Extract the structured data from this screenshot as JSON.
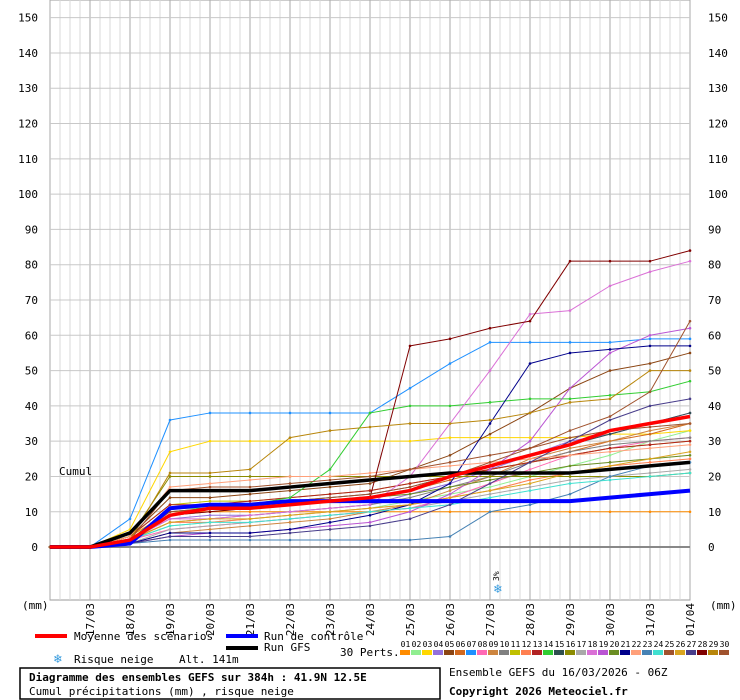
{
  "chart_data": {
    "type": "line",
    "ylabel_left": "(mm)",
    "ylabel_right": "(mm)",
    "series_label": "Cumul",
    "ylim": [
      -15,
      155
    ],
    "yticks": [
      0,
      10,
      20,
      30,
      40,
      50,
      60,
      70,
      80,
      90,
      100,
      110,
      120,
      130,
      140,
      150
    ],
    "xticks": [
      "17/03",
      "18/03",
      "19/03",
      "20/03",
      "21/03",
      "22/03",
      "23/03",
      "24/03",
      "25/03",
      "26/03",
      "27/03",
      "28/03",
      "29/03",
      "30/03",
      "31/03",
      "01/04"
    ],
    "x_hours": [
      0,
      24,
      48,
      72,
      96,
      120,
      144,
      168,
      192,
      216,
      240,
      264,
      288,
      312,
      336,
      360,
      384
    ],
    "snow_risk_marker": {
      "hour": 270,
      "label": "3%"
    },
    "mean": {
      "name": "Moyenne des scénarios",
      "color": "#ff0000",
      "values": [
        0,
        0,
        2,
        9,
        11,
        11,
        12,
        13,
        14,
        16,
        20,
        23,
        26,
        29,
        33,
        35,
        37
      ]
    },
    "control": {
      "name": "Run de contrôle",
      "color": "#0000ff",
      "values": [
        0,
        0,
        1,
        11,
        12,
        12,
        13,
        13,
        13,
        13,
        13,
        13,
        13,
        13,
        14,
        15,
        16
      ]
    },
    "gfs": {
      "name": "Run GFS",
      "color": "#000000",
      "values": [
        0,
        0,
        4,
        16,
        16,
        16,
        17,
        18,
        19,
        20,
        21,
        21,
        21,
        21,
        22,
        23,
        24
      ]
    },
    "perturbations": [
      {
        "name": "01",
        "color": "#ff8c00",
        "values": [
          0,
          0,
          3,
          10,
          10,
          10,
          10,
          10,
          10,
          10,
          10,
          10,
          10,
          10,
          10,
          10,
          10
        ]
      },
      {
        "name": "02",
        "color": "#90ee90",
        "values": [
          0,
          0,
          2,
          6,
          7,
          8,
          9,
          10,
          11,
          13,
          15,
          17,
          20,
          23,
          26,
          30,
          33
        ]
      },
      {
        "name": "03",
        "color": "#ffd700",
        "values": [
          0,
          0,
          5,
          27,
          30,
          30,
          30,
          30,
          30,
          30,
          31,
          31,
          31,
          31,
          32,
          32,
          33
        ]
      },
      {
        "name": "04",
        "color": "#9370db",
        "values": [
          0,
          0,
          2,
          8,
          9,
          9,
          10,
          11,
          12,
          15,
          18,
          22,
          26,
          30,
          32,
          35,
          38
        ]
      },
      {
        "name": "05",
        "color": "#8b4513",
        "values": [
          0,
          0,
          3,
          14,
          14,
          15,
          16,
          17,
          18,
          22,
          26,
          32,
          38,
          45,
          50,
          52,
          55
        ]
      },
      {
        "name": "06",
        "color": "#d2691e",
        "values": [
          0,
          0,
          2,
          9,
          10,
          11,
          12,
          13,
          14,
          16,
          19,
          22,
          24,
          27,
          30,
          32,
          35
        ]
      },
      {
        "name": "07",
        "color": "#1e90ff",
        "values": [
          0,
          0,
          8,
          36,
          38,
          38,
          38,
          38,
          38,
          45,
          52,
          58,
          58,
          58,
          58,
          59,
          59
        ]
      },
      {
        "name": "08",
        "color": "#ff69b4",
        "values": [
          0,
          0,
          2,
          5,
          6,
          7,
          8,
          9,
          10,
          11,
          14,
          18,
          22,
          26,
          28,
          30,
          31
        ]
      },
      {
        "name": "09",
        "color": "#cd853f",
        "values": [
          0,
          0,
          1,
          4,
          5,
          6,
          7,
          8,
          10,
          12,
          16,
          20,
          25,
          28,
          30,
          33,
          35
        ]
      },
      {
        "name": "10",
        "color": "#808080",
        "values": [
          0,
          0,
          2,
          7,
          8,
          9,
          10,
          11,
          12,
          14,
          17,
          20,
          24,
          27,
          29,
          30,
          31
        ]
      },
      {
        "name": "11",
        "color": "#c0c000",
        "values": [
          0,
          0,
          3,
          12,
          13,
          13,
          14,
          15,
          16,
          18,
          20,
          22,
          24,
          26,
          28,
          29,
          30
        ]
      },
      {
        "name": "12",
        "color": "#ff7f50",
        "values": [
          0,
          0,
          2,
          7,
          7,
          8,
          9,
          10,
          11,
          12,
          14,
          16,
          19,
          21,
          23,
          24,
          25
        ]
      },
      {
        "name": "13",
        "color": "#b22222",
        "values": [
          0,
          0,
          3,
          12,
          12,
          13,
          14,
          15,
          16,
          18,
          20,
          22,
          24,
          26,
          28,
          29,
          30
        ]
      },
      {
        "name": "14",
        "color": "#32cd32",
        "values": [
          0,
          0,
          2,
          11,
          11,
          12,
          14,
          22,
          38,
          40,
          40,
          41,
          42,
          42,
          43,
          44,
          47
        ]
      },
      {
        "name": "15",
        "color": "#2f4f4f",
        "values": [
          0,
          0,
          2,
          10,
          11,
          12,
          13,
          14,
          15,
          17,
          20,
          23,
          26,
          29,
          32,
          35,
          38
        ]
      },
      {
        "name": "16",
        "color": "#8b8b00",
        "values": [
          0,
          0,
          3,
          20,
          20,
          20,
          20,
          20,
          20,
          20,
          20,
          20,
          20,
          20,
          20,
          20,
          21
        ]
      },
      {
        "name": "17",
        "color": "#a9a9a9",
        "values": [
          0,
          0,
          1,
          5,
          6,
          7,
          8,
          9,
          10,
          11,
          13,
          15,
          17,
          19,
          20,
          21,
          22
        ]
      },
      {
        "name": "18",
        "color": "#da70d6",
        "values": [
          0,
          0,
          2,
          8,
          8,
          9,
          10,
          11,
          12,
          20,
          35,
          50,
          66,
          67,
          74,
          78,
          81
        ]
      },
      {
        "name": "19",
        "color": "#ba55d3",
        "values": [
          0,
          0,
          1,
          3,
          4,
          4,
          5,
          6,
          7,
          10,
          15,
          22,
          30,
          45,
          55,
          60,
          62
        ]
      },
      {
        "name": "20",
        "color": "#6b8e23",
        "values": [
          0,
          0,
          2,
          11,
          12,
          12,
          13,
          13,
          14,
          15,
          17,
          19,
          21,
          23,
          24,
          25,
          26
        ]
      },
      {
        "name": "21",
        "color": "#00008b",
        "values": [
          0,
          0,
          1,
          4,
          4,
          4,
          5,
          7,
          9,
          12,
          18,
          35,
          52,
          55,
          56,
          57,
          57
        ]
      },
      {
        "name": "22",
        "color": "#ffa07a",
        "values": [
          0,
          0,
          3,
          17,
          18,
          19,
          20,
          20,
          21,
          22,
          23,
          24,
          25,
          26,
          27,
          28,
          29
        ]
      },
      {
        "name": "23",
        "color": "#4682b4",
        "values": [
          0,
          0,
          1,
          2,
          2,
          2,
          2,
          2,
          2,
          2,
          3,
          10,
          12,
          15,
          20,
          23,
          24
        ]
      },
      {
        "name": "24",
        "color": "#40e0d0",
        "values": [
          0,
          0,
          2,
          6,
          7,
          7,
          8,
          9,
          10,
          11,
          12,
          14,
          16,
          18,
          19,
          20,
          21
        ]
      },
      {
        "name": "25",
        "color": "#a0522d",
        "values": [
          0,
          0,
          2,
          16,
          17,
          17,
          18,
          19,
          20,
          22,
          24,
          26,
          28,
          31,
          33,
          34,
          35
        ]
      },
      {
        "name": "26",
        "color": "#daa520",
        "values": [
          0,
          0,
          2,
          7,
          8,
          8,
          9,
          10,
          11,
          12,
          14,
          16,
          18,
          21,
          23,
          25,
          27
        ]
      },
      {
        "name": "27",
        "color": "#483d8b",
        "values": [
          0,
          0,
          1,
          3,
          3,
          3,
          4,
          5,
          6,
          8,
          12,
          18,
          24,
          30,
          36,
          40,
          42
        ]
      },
      {
        "name": "28",
        "color": "#800000",
        "values": [
          0,
          0,
          2,
          9,
          10,
          11,
          12,
          13,
          14,
          57,
          59,
          62,
          64,
          81,
          81,
          81,
          84
        ]
      },
      {
        "name": "29",
        "color": "#b8860b",
        "values": [
          0,
          0,
          2,
          21,
          21,
          22,
          31,
          33,
          34,
          35,
          35,
          36,
          38,
          41,
          42,
          50,
          50
        ]
      },
      {
        "name": "30",
        "color": "#a0522d",
        "values": [
          0,
          0,
          2,
          10,
          11,
          12,
          13,
          14,
          15,
          17,
          20,
          24,
          28,
          33,
          37,
          44,
          64
        ]
      }
    ]
  },
  "legend": {
    "mean_label": "Moyenne des scénarios",
    "control_label": "Run de contrôle",
    "gfs_label": "Run GFS",
    "snow_label": "Risque neige",
    "altitude": "Alt. 141m",
    "perts_label": "30 Perts.",
    "perts_numbers": "01020304050607080910111213141516171819202122232425262728293 0"
  },
  "footer": {
    "title": "Diagramme des ensembles GEFS sur 384h : 41.9N 12.5E",
    "subtitle": "Cumul précipitations (mm) , risque neige",
    "ensemble": "Ensemble GEFS du 16/03/2026 - 06Z",
    "copyright": "Copyright 2026 Meteociel.fr"
  }
}
